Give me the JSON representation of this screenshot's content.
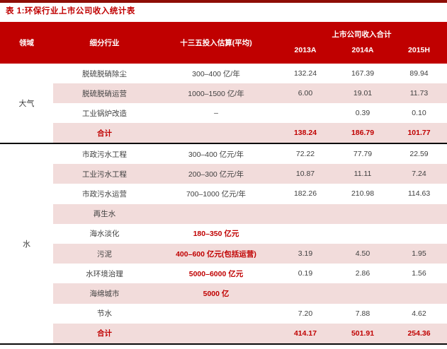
{
  "title": "表 1:环保行业上市公司收入统计表",
  "colors": {
    "header_bg": "#c00000",
    "row_shade": "#f2dcdb",
    "accent_red": "#c00000",
    "top_rule": "#8e0d06",
    "body_text": "#3f3f3f"
  },
  "table": {
    "headers": {
      "field": "领域",
      "sub_industry": "细分行业",
      "investment": "十三五投入估算(平均)",
      "revenue_total": "上市公司收入合计",
      "years": [
        "2013A",
        "2014A",
        "2015H"
      ]
    },
    "field_groups": [
      {
        "label": "大气"
      },
      {
        "label": "水"
      }
    ],
    "rows": [
      {
        "sub": "脱硫脱硝除尘",
        "invest": "300–400 亿/年",
        "y2013": "132.24",
        "y2014": "167.39",
        "y2015": "89.94"
      },
      {
        "sub": "脱硫脱硝运营",
        "invest": "1000–1500 亿/年",
        "y2013": "6.00",
        "y2014": "19.01",
        "y2015": "11.73"
      },
      {
        "sub": "工业锅炉改造",
        "invest": "–",
        "y2013": "",
        "y2014": "0.39",
        "y2015": "0.10"
      },
      {
        "sub": "合计",
        "invest": "",
        "y2013": "138.24",
        "y2014": "186.79",
        "y2015": "101.77"
      },
      {
        "sub": "市政污水工程",
        "invest": "300–400 亿元/年",
        "y2013": "72.22",
        "y2014": "77.79",
        "y2015": "22.59"
      },
      {
        "sub": "工业污水工程",
        "invest": "200–300 亿元/年",
        "y2013": "10.87",
        "y2014": "11.11",
        "y2015": "7.24"
      },
      {
        "sub": "市政污水运营",
        "invest": "700–1000 亿元/年",
        "y2013": "182.26",
        "y2014": "210.98",
        "y2015": "114.63"
      },
      {
        "sub": "再生水",
        "invest": "",
        "y2013": "",
        "y2014": "",
        "y2015": ""
      },
      {
        "sub": "海水淡化",
        "invest": "180–350 亿元",
        "y2013": "",
        "y2014": "",
        "y2015": ""
      },
      {
        "sub": "污泥",
        "invest": "400–600 亿元(包括运营)",
        "y2013": "3.19",
        "y2014": "4.50",
        "y2015": "1.95"
      },
      {
        "sub": "水环境治理",
        "invest": "5000–6000 亿元",
        "y2013": "0.19",
        "y2014": "2.86",
        "y2015": "1.56"
      },
      {
        "sub": "海绵城市",
        "invest": "5000 亿",
        "y2013": "",
        "y2014": "",
        "y2015": ""
      },
      {
        "sub": "节水",
        "invest": "",
        "y2013": "7.20",
        "y2014": "7.88",
        "y2015": "4.62"
      },
      {
        "sub": "合计",
        "invest": "",
        "y2013": "414.17",
        "y2014": "501.91",
        "y2015": "254.36"
      }
    ]
  }
}
